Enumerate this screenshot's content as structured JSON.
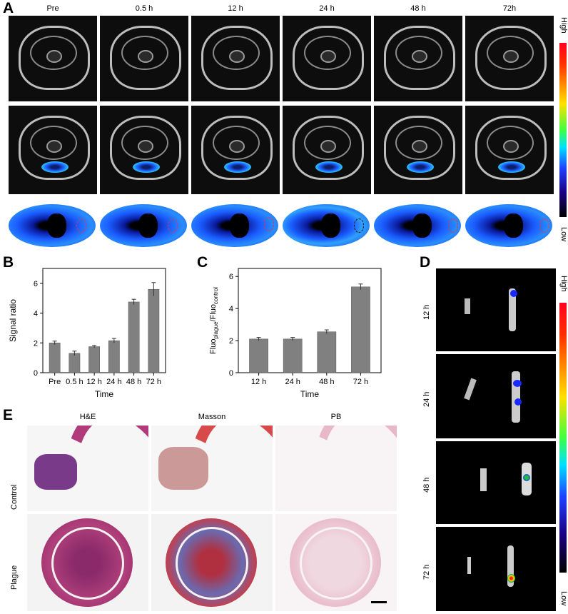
{
  "panels": {
    "A": "A",
    "B": "B",
    "C": "C",
    "D": "D",
    "E": "E"
  },
  "panelA": {
    "timepoints": [
      "Pre",
      "0.5 h",
      "12 h",
      "24 h",
      "48 h",
      "72h"
    ],
    "colorbar": {
      "high": "High",
      "low": "Low"
    }
  },
  "panelD": {
    "timepoints": [
      "12 h",
      "24 h",
      "48 h",
      "72 h"
    ],
    "colorbar": {
      "high": "High",
      "low": "Low"
    }
  },
  "panelE": {
    "columns": [
      "H&E",
      "Masson",
      "PB"
    ],
    "rows": [
      "Control",
      "Plague"
    ]
  },
  "chart_data": [
    {
      "id": "B",
      "type": "bar",
      "categories": [
        "Pre",
        "0.5 h",
        "12 h",
        "24 h",
        "48 h",
        "72 h"
      ],
      "values": [
        2.0,
        1.3,
        1.75,
        2.15,
        4.75,
        5.6
      ],
      "errors": [
        0.12,
        0.15,
        0.08,
        0.15,
        0.18,
        0.45
      ],
      "xlabel": "Time",
      "ylabel": "Signal ratio",
      "ylim": [
        0,
        7
      ],
      "yticks": [
        0,
        2,
        4,
        6
      ],
      "bar_color": "#808080"
    },
    {
      "id": "C",
      "type": "bar",
      "categories": [
        "12 h",
        "24 h",
        "48 h",
        "72 h"
      ],
      "values": [
        2.1,
        2.1,
        2.55,
        5.35
      ],
      "errors": [
        0.1,
        0.1,
        0.12,
        0.18
      ],
      "xlabel": "Time",
      "ylabel_main": "Fluo",
      "ylabel_sub1": "plague",
      "ylabel_mid": "/Fluo",
      "ylabel_sub2": "control",
      "ylim": [
        0,
        6.5
      ],
      "yticks": [
        0,
        2,
        4,
        6
      ],
      "bar_color": "#808080"
    }
  ]
}
